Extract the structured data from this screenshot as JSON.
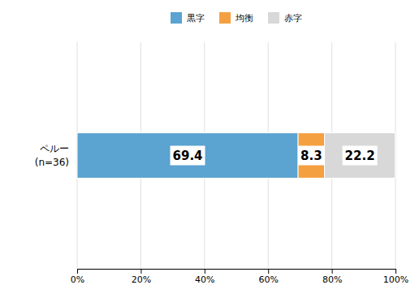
{
  "chart_data": {
    "type": "bar",
    "orientation": "horizontal",
    "stacked": true,
    "data_labels": true,
    "grid": true,
    "legend": "top",
    "categories": [
      "ペルー\n(n=36)"
    ],
    "series": [
      {
        "name": "黒字",
        "color": "#5BA3D0",
        "values": [
          69.4
        ]
      },
      {
        "name": "均衡",
        "color": "#F4A040",
        "values": [
          8.3
        ]
      },
      {
        "name": "赤字",
        "color": "#D8D8D8",
        "values": [
          22.2
        ]
      }
    ],
    "xlim": [
      0,
      100
    ],
    "xticks": [
      {
        "value": 0,
        "label": "0%"
      },
      {
        "value": 20,
        "label": "20%"
      },
      {
        "value": 40,
        "label": "40%"
      },
      {
        "value": 60,
        "label": "60%"
      },
      {
        "value": 80,
        "label": "80%"
      },
      {
        "value": 100,
        "label": "100%"
      }
    ]
  }
}
